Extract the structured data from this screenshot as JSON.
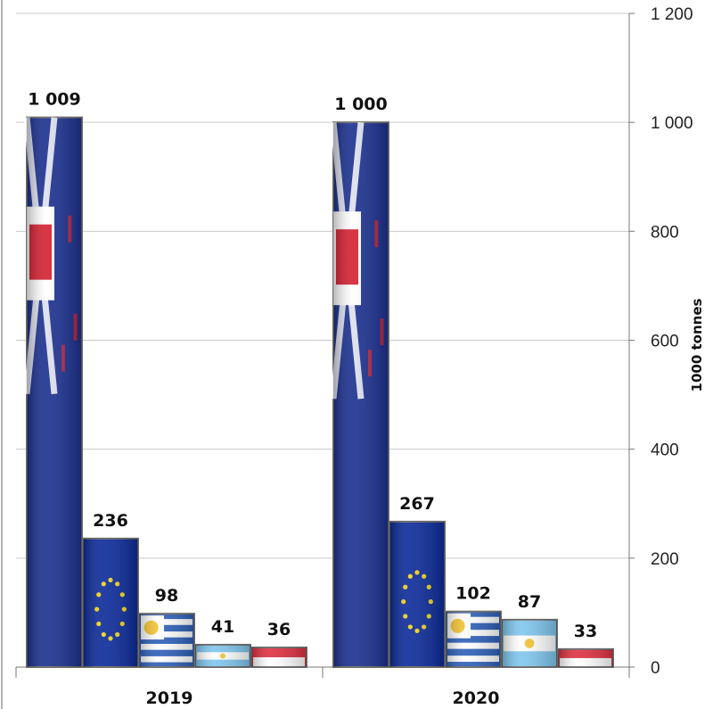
{
  "chart_data": {
    "type": "bar",
    "categories": [
      "2019",
      "2020"
    ],
    "series": [
      {
        "flag": "new-zealand",
        "color": "#1a2f8f",
        "values": [
          1009,
          1000
        ]
      },
      {
        "flag": "european-union",
        "color": "#0b2a9a",
        "values": [
          236,
          267
        ]
      },
      {
        "flag": "uruguay",
        "color": "#2c5fb8",
        "values": [
          98,
          102
        ]
      },
      {
        "flag": "argentina",
        "color": "#7fc6ee",
        "values": [
          41,
          87
        ]
      },
      {
        "flag": "singapore",
        "color": "#e03040",
        "values": [
          36,
          33
        ]
      }
    ],
    "data_labels": [
      [
        "1 009",
        "1 000"
      ],
      [
        "236",
        "267"
      ],
      [
        "98",
        "102"
      ],
      [
        "41",
        "87"
      ],
      [
        "36",
        "33"
      ]
    ],
    "ylabel": "1000 tonnes",
    "ylim": [
      0,
      1200
    ],
    "yticks": [
      0,
      200,
      400,
      600,
      800,
      1000,
      1200
    ],
    "ytick_labels": [
      "0",
      "200",
      "400",
      "600",
      "800",
      "1 000",
      "1 200"
    ],
    "y_axis_position": "right",
    "grid": true,
    "legend": "none"
  }
}
